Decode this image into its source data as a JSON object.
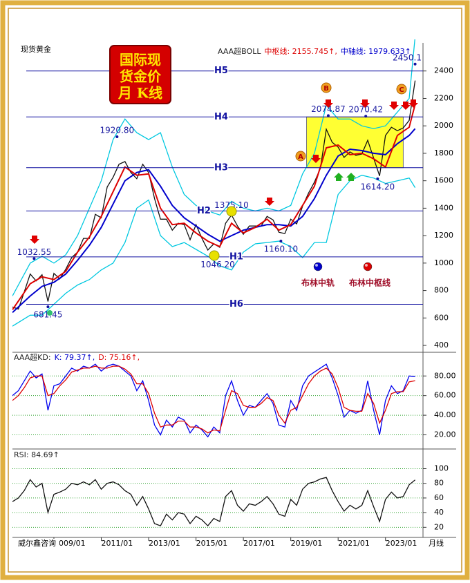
{
  "page": {
    "frame_title": [
      "国际现",
      "货金价",
      "月 K线"
    ],
    "watermark": "威尔鑫咨询",
    "period": "月线",
    "markers": [
      "A",
      "B",
      "C"
    ]
  },
  "chart_data": [
    {
      "type": "line",
      "title": "现货黄金",
      "header": [
        {
          "text": "AAA超BOLL",
          "color": "#222222"
        },
        {
          "text": "中枢线: 2155.745↑,",
          "color": "#dd0000"
        },
        {
          "text": "中轴线: 1979.633↑",
          "color": "#0000cc"
        }
      ],
      "xlim": [
        "2007/04",
        "2024/08"
      ],
      "ylim": [
        365,
        2590
      ],
      "yticks": [
        400,
        600,
        800,
        1000,
        1200,
        1400,
        1600,
        1800,
        2000,
        2200,
        2400
      ],
      "grid": false,
      "x": [
        "2007/04",
        "2007/07",
        "2007/10",
        "2008/01",
        "2008/04",
        "2008/07",
        "2008/10",
        "2009/01",
        "2009/04",
        "2009/07",
        "2009/10",
        "2010/01",
        "2010/04",
        "2010/07",
        "2010/10",
        "2011/01",
        "2011/04",
        "2011/07",
        "2011/10",
        "2012/01",
        "2012/04",
        "2012/07",
        "2012/10",
        "2013/01",
        "2013/04",
        "2013/07",
        "2013/10",
        "2014/01",
        "2014/04",
        "2014/07",
        "2014/10",
        "2015/01",
        "2015/04",
        "2015/07",
        "2015/10",
        "2016/01",
        "2016/04",
        "2016/07",
        "2016/10",
        "2017/01",
        "2017/04",
        "2017/07",
        "2017/10",
        "2018/01",
        "2018/04",
        "2018/07",
        "2018/10",
        "2019/01",
        "2019/04",
        "2019/07",
        "2019/10",
        "2020/01",
        "2020/04",
        "2020/07",
        "2020/10",
        "2021/01",
        "2021/04",
        "2021/07",
        "2021/10",
        "2022/01",
        "2022/04",
        "2022/07",
        "2022/10",
        "2023/01",
        "2023/04",
        "2023/07",
        "2023/10",
        "2024/01",
        "2024/04"
      ],
      "zone": {
        "x": [
          "2019/09",
          "2023/10"
        ],
        "y": [
          1695,
          2065
        ],
        "color": "#ffff33"
      },
      "series": [
        {
          "color": "#00c8e0",
          "x": [
            "2007/04",
            "2008/01",
            "2008/07",
            "2009/01",
            "2009/07",
            "2010/01",
            "2010/07",
            "2011/01",
            "2011/07",
            "2012/01",
            "2012/07",
            "2013/01",
            "2013/07",
            "2014/01",
            "2014/07",
            "2015/01",
            "2015/07",
            "2016/01",
            "2016/07",
            "2017/01",
            "2017/07",
            "2018/01",
            "2018/07",
            "2019/01",
            "2019/07",
            "2020/01",
            "2020/07",
            "2021/01",
            "2021/07",
            "2022/01",
            "2022/07",
            "2023/01",
            "2023/07",
            "2024/01",
            "2024/04"
          ],
          "values": [
            760,
            1000,
            1050,
            1000,
            1060,
            1200,
            1400,
            1600,
            1900,
            2050,
            1950,
            1900,
            1950,
            1700,
            1500,
            1420,
            1380,
            1350,
            1450,
            1400,
            1380,
            1400,
            1380,
            1420,
            1650,
            1800,
            2150,
            2050,
            2050,
            2000,
            1980,
            2000,
            2100,
            2200,
            2650
          ]
        },
        {
          "color": "#00c8e0",
          "x": [
            "2007/04",
            "2008/01",
            "2008/07",
            "2009/01",
            "2009/07",
            "2010/01",
            "2010/07",
            "2011/01",
            "2011/07",
            "2012/01",
            "2012/07",
            "2013/01",
            "2013/07",
            "2014/01",
            "2014/07",
            "2015/01",
            "2015/07",
            "2016/01",
            "2016/07",
            "2017/01",
            "2017/07",
            "2018/01",
            "2018/07",
            "2019/01",
            "2019/07",
            "2020/01",
            "2020/07",
            "2021/01",
            "2021/07",
            "2022/01",
            "2022/07",
            "2023/01",
            "2023/07",
            "2024/01",
            "2024/04"
          ],
          "values": [
            540,
            620,
            620,
            700,
            780,
            840,
            880,
            950,
            1000,
            1150,
            1400,
            1460,
            1200,
            1120,
            1150,
            1100,
            1050,
            980,
            950,
            1080,
            1140,
            1150,
            1160,
            1120,
            1040,
            1150,
            1150,
            1500,
            1600,
            1640,
            1620,
            1580,
            1600,
            1620,
            1550
          ]
        },
        {
          "color": "#111111",
          "values": [
            680,
            665,
            790,
            920,
            870,
            915,
            720,
            925,
            885,
            955,
            1040,
            1080,
            1180,
            1180,
            1355,
            1330,
            1555,
            1625,
            1720,
            1740,
            1660,
            1615,
            1720,
            1660,
            1470,
            1320,
            1320,
            1240,
            1290,
            1280,
            1170,
            1280,
            1180,
            1095,
            1140,
            1115,
            1290,
            1350,
            1270,
            1210,
            1270,
            1270,
            1270,
            1340,
            1315,
            1225,
            1215,
            1320,
            1285,
            1415,
            1510,
            1590,
            1690,
            1975,
            1880,
            1845,
            1770,
            1810,
            1785,
            1795,
            1895,
            1765,
            1635,
            1930,
            1990,
            1965,
            1985,
            2040,
            2330
          ]
        },
        {
          "name": "布林中轨",
          "color": "#0000cc",
          "x": [
            "2007/04",
            "2008/01",
            "2008/07",
            "2009/01",
            "2009/07",
            "2010/01",
            "2010/07",
            "2011/01",
            "2011/07",
            "2012/01",
            "2012/07",
            "2013/01",
            "2013/07",
            "2014/01",
            "2014/07",
            "2015/01",
            "2015/07",
            "2016/01",
            "2016/07",
            "2017/01",
            "2017/07",
            "2018/01",
            "2018/07",
            "2019/01",
            "2019/07",
            "2020/01",
            "2020/07",
            "2021/01",
            "2021/07",
            "2022/01",
            "2022/07",
            "2023/01",
            "2023/07",
            "2024/01",
            "2024/04"
          ],
          "values": [
            640,
            760,
            830,
            860,
            920,
            1020,
            1130,
            1260,
            1430,
            1600,
            1660,
            1680,
            1560,
            1420,
            1330,
            1270,
            1210,
            1160,
            1200,
            1240,
            1260,
            1280,
            1280,
            1270,
            1340,
            1470,
            1640,
            1780,
            1830,
            1820,
            1800,
            1790,
            1870,
            1930,
            1979.633
          ]
        },
        {
          "name": "布林中枢线",
          "color": "#dd0000",
          "x": [
            "2007/04",
            "2008/01",
            "2008/07",
            "2009/01",
            "2009/07",
            "2010/01",
            "2010/07",
            "2011/01",
            "2011/07",
            "2012/01",
            "2012/07",
            "2013/01",
            "2013/07",
            "2014/01",
            "2014/07",
            "2015/01",
            "2015/07",
            "2016/01",
            "2016/07",
            "2017/01",
            "2017/07",
            "2018/01",
            "2018/07",
            "2019/01",
            "2019/07",
            "2020/01",
            "2020/07",
            "2021/01",
            "2021/07",
            "2022/01",
            "2022/07",
            "2023/01",
            "2023/07",
            "2024/01",
            "2024/04"
          ],
          "values": [
            660,
            850,
            900,
            880,
            940,
            1080,
            1190,
            1340,
            1520,
            1700,
            1640,
            1650,
            1400,
            1280,
            1290,
            1220,
            1160,
            1120,
            1290,
            1220,
            1260,
            1320,
            1240,
            1280,
            1420,
            1560,
            1840,
            1860,
            1790,
            1800,
            1760,
            1700,
            1930,
            1990,
            2155.745
          ]
        }
      ],
      "levels": [
        {
          "name": "H5",
          "value": 2400
        },
        {
          "name": "H4",
          "value": 2065
        },
        {
          "name": "H3",
          "value": 1695
        },
        {
          "name": "H2",
          "value": 1380
        },
        {
          "name": "H1",
          "value": 1045
        },
        {
          "name": "H6",
          "value": 700
        }
      ],
      "annotations": [
        {
          "x": "2011/09",
          "value": 1920.8,
          "label": "1920.80",
          "position": "above"
        },
        {
          "x": "2020/08",
          "value": 2074.87,
          "label": "2074.87",
          "position": "above"
        },
        {
          "x": "2022/03",
          "value": 2070.42,
          "label": "2070.42",
          "position": "above"
        },
        {
          "x": "2016/07",
          "value": 1375.1,
          "label": "1375.10",
          "position": "above"
        },
        {
          "x": "2008/03",
          "value": 1032.55,
          "label": "1032.55",
          "position": "above"
        },
        {
          "x": "2015/12",
          "value": 1046.2,
          "label": "1046.20",
          "position": "below"
        },
        {
          "x": "2018/08",
          "value": 1160.1,
          "label": "1160.10",
          "position": "below"
        },
        {
          "x": "2022/09",
          "value": 1614.2,
          "label": "1614.20",
          "position": "below"
        },
        {
          "x": "2008/10",
          "value": 681.45,
          "label": "681.45",
          "position": "below"
        },
        {
          "x": "2024/04",
          "value": 2450.1,
          "label": "2450.1",
          "position": "above"
        }
      ]
    },
    {
      "type": "line",
      "header": [
        {
          "text": "AAA超KD:",
          "color": "#222222"
        },
        {
          "text": "K: 79.37↑,",
          "color": "#0000cc"
        },
        {
          "text": "D: 75.16↑,",
          "color": "#dd0000"
        }
      ],
      "xlim": [
        "2007/04",
        "2024/08"
      ],
      "ylim": [
        7,
        102
      ],
      "grid": true,
      "yticks": [
        {
          "value": 20,
          "label": "20.00"
        },
        {
          "value": 40,
          "label": "40.00"
        },
        {
          "value": 60,
          "label": "60.00"
        },
        {
          "value": 80,
          "label": "80.00"
        }
      ],
      "x": [
        "2007/04",
        "2007/07",
        "2007/10",
        "2008/01",
        "2008/04",
        "2008/07",
        "2008/10",
        "2009/01",
        "2009/04",
        "2009/07",
        "2009/10",
        "2010/01",
        "2010/04",
        "2010/07",
        "2010/10",
        "2011/01",
        "2011/04",
        "2011/07",
        "2011/10",
        "2012/01",
        "2012/04",
        "2012/07",
        "2012/10",
        "2013/01",
        "2013/04",
        "2013/07",
        "2013/10",
        "2014/01",
        "2014/04",
        "2014/07",
        "2014/10",
        "2015/01",
        "2015/04",
        "2015/07",
        "2015/10",
        "2016/01",
        "2016/04",
        "2016/07",
        "2016/10",
        "2017/01",
        "2017/04",
        "2017/07",
        "2017/10",
        "2018/01",
        "2018/04",
        "2018/07",
        "2018/10",
        "2019/01",
        "2019/04",
        "2019/07",
        "2019/10",
        "2020/01",
        "2020/04",
        "2020/07",
        "2020/10",
        "2021/01",
        "2021/04",
        "2021/07",
        "2021/10",
        "2022/01",
        "2022/04",
        "2022/07",
        "2022/10",
        "2023/01",
        "2023/04",
        "2023/07",
        "2023/10",
        "2024/01",
        "2024/04"
      ],
      "series": [
        {
          "color": "#0000ee",
          "values": [
            60,
            65,
            75,
            85,
            78,
            82,
            45,
            70,
            72,
            80,
            88,
            85,
            90,
            88,
            92,
            85,
            90,
            92,
            90,
            85,
            80,
            65,
            75,
            55,
            30,
            20,
            35,
            28,
            38,
            35,
            22,
            30,
            25,
            18,
            28,
            22,
            60,
            75,
            55,
            40,
            50,
            48,
            55,
            62,
            52,
            30,
            28,
            55,
            45,
            70,
            80,
            84,
            88,
            92,
            78,
            60,
            38,
            45,
            42,
            45,
            75,
            45,
            20,
            55,
            70,
            62,
            65,
            80,
            79.37
          ]
        },
        {
          "color": "#dd0000",
          "values": [
            55,
            60,
            68,
            78,
            80,
            80,
            60,
            62,
            70,
            76,
            84,
            86,
            88,
            88,
            90,
            88,
            88,
            90,
            90,
            87,
            82,
            72,
            72,
            62,
            42,
            28,
            30,
            30,
            34,
            34,
            28,
            28,
            26,
            22,
            25,
            24,
            45,
            65,
            62,
            50,
            48,
            48,
            52,
            58,
            55,
            40,
            32,
            45,
            48,
            60,
            72,
            80,
            85,
            88,
            82,
            68,
            48,
            45,
            44,
            44,
            62,
            52,
            32,
            45,
            62,
            64,
            64,
            74,
            75.16
          ]
        }
      ]
    },
    {
      "type": "line",
      "header": [
        {
          "text": "RSI: 84.69↑",
          "color": "#222222"
        }
      ],
      "xlim": [
        "2007/04",
        "2024/08"
      ],
      "ylim": [
        9,
        125
      ],
      "grid": true,
      "yticks": [
        20,
        40,
        60,
        80,
        100
      ],
      "xticks": [
        "2009/01",
        "2011/01",
        "2013/01",
        "2015/01",
        "2017/01",
        "2019/01",
        "2021/01",
        "2023/01"
      ],
      "x": [
        "2007/04",
        "2007/07",
        "2007/10",
        "2008/01",
        "2008/04",
        "2008/07",
        "2008/10",
        "2009/01",
        "2009/04",
        "2009/07",
        "2009/10",
        "2010/01",
        "2010/04",
        "2010/07",
        "2010/10",
        "2011/01",
        "2011/04",
        "2011/07",
        "2011/10",
        "2012/01",
        "2012/04",
        "2012/07",
        "2012/10",
        "2013/01",
        "2013/04",
        "2013/07",
        "2013/10",
        "2014/01",
        "2014/04",
        "2014/07",
        "2014/10",
        "2015/01",
        "2015/04",
        "2015/07",
        "2015/10",
        "2016/01",
        "2016/04",
        "2016/07",
        "2016/10",
        "2017/01",
        "2017/04",
        "2017/07",
        "2017/10",
        "2018/01",
        "2018/04",
        "2018/07",
        "2018/10",
        "2019/01",
        "2019/04",
        "2019/07",
        "2019/10",
        "2020/01",
        "2020/04",
        "2020/07",
        "2020/10",
        "2021/01",
        "2021/04",
        "2021/07",
        "2021/10",
        "2022/01",
        "2022/04",
        "2022/07",
        "2022/10",
        "2023/01",
        "2023/04",
        "2023/07",
        "2023/10",
        "2024/01",
        "2024/04"
      ],
      "series": [
        {
          "color": "#111111",
          "values": [
            55,
            60,
            70,
            85,
            75,
            80,
            40,
            65,
            68,
            72,
            80,
            78,
            82,
            78,
            85,
            72,
            80,
            82,
            78,
            70,
            65,
            50,
            62,
            45,
            25,
            22,
            38,
            30,
            40,
            38,
            25,
            35,
            30,
            22,
            32,
            28,
            62,
            70,
            50,
            42,
            52,
            50,
            55,
            62,
            52,
            38,
            35,
            58,
            50,
            72,
            80,
            82,
            86,
            88,
            70,
            55,
            42,
            50,
            45,
            50,
            70,
            48,
            28,
            58,
            68,
            60,
            62,
            78,
            84.69
          ]
        }
      ]
    }
  ]
}
